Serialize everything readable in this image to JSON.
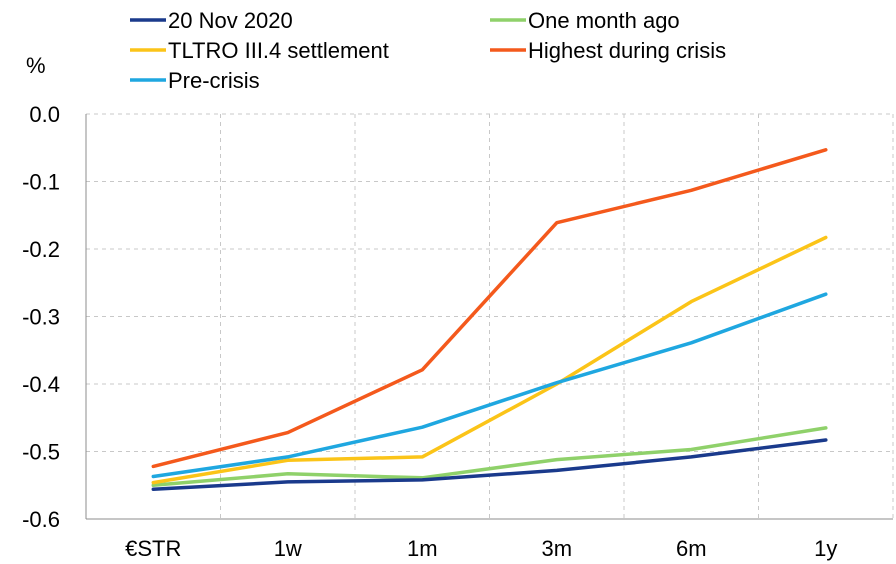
{
  "chart_data": {
    "type": "line",
    "unit_label": "%",
    "categories": [
      "€STR",
      "1w",
      "1m",
      "3m",
      "6m",
      "1y"
    ],
    "ylim": [
      -0.6,
      0.0
    ],
    "yticks": [
      "0.0",
      "-0.1",
      "-0.2",
      "-0.3",
      "-0.4",
      "-0.5",
      "-0.6"
    ],
    "grid": true,
    "legend_position": "top",
    "series": [
      {
        "name": "20 Nov 2020",
        "color": "#1a3a8c",
        "values": [
          -0.556,
          -0.545,
          -0.542,
          -0.528,
          -0.508,
          -0.483
        ]
      },
      {
        "name": "One month ago",
        "color": "#8fd16a",
        "values": [
          -0.55,
          -0.533,
          -0.539,
          -0.512,
          -0.497,
          -0.465
        ]
      },
      {
        "name": "TLTRO III.4 settlement",
        "color": "#fbc418",
        "values": [
          -0.546,
          -0.513,
          -0.508,
          -0.4,
          -0.278,
          -0.183
        ]
      },
      {
        "name": "Highest during crisis",
        "color": "#f4591c",
        "values": [
          -0.522,
          -0.472,
          -0.379,
          -0.161,
          -0.113,
          -0.053
        ]
      },
      {
        "name": "Pre-crisis",
        "color": "#1fa7e0",
        "values": [
          -0.537,
          -0.508,
          -0.464,
          -0.398,
          -0.339,
          -0.267
        ]
      }
    ]
  }
}
